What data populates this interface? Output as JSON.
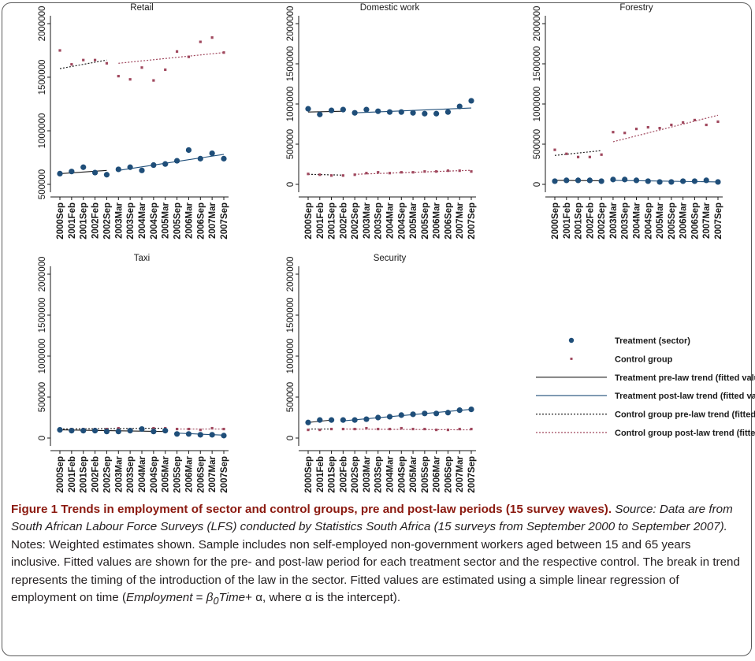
{
  "sectors": [
    "Retail",
    "Domestic work",
    "Forestry",
    "Taxi",
    "Security"
  ],
  "y_ticks": [
    [
      "500000",
      "1000000",
      "1500000",
      "2000000"
    ],
    [
      "0",
      "500000",
      "1000000",
      "1500000",
      "2000000"
    ],
    [
      "0",
      "500000",
      "1000000",
      "1500000",
      "2000000"
    ],
    [
      "0",
      "500000",
      "1000000",
      "1500000",
      "2000000"
    ],
    [
      "0",
      "500000",
      "1000000",
      "1500000",
      "2000000"
    ]
  ],
  "x_ticks": [
    "2000Sep",
    "2001Feb",
    "2001Sep",
    "2002Feb",
    "2002Sep",
    "2003Mar",
    "2003Sep",
    "2004Mar",
    "2004Sep",
    "2005Mar",
    "2005Sep",
    "2006Mar",
    "2006Sep",
    "2007Mar",
    "2007Sep"
  ],
  "legend": [
    "Treatment (sector)",
    "Control group",
    "Treatment pre-law trend (fitted values)",
    "Treatment post-law trend (fitted values)",
    "Control group pre-law trend (fitted values)",
    "Control group post-law trend (fitted values)"
  ],
  "colors": {
    "treatment": "#1f4e79",
    "control": "#a0485e",
    "treatment_pre": "#1a1a1a",
    "treatment_post": "#1f4e79",
    "control_pre": "#222222",
    "control_post": "#a0485e",
    "caption_title": "#8b1a10"
  },
  "caption": {
    "title": "Figure 1 Trends in employment of sector and control groups, pre and post-law periods (15 survey waves).",
    "source": "Source: Data are from South African Labour Force Surveys (LFS) conducted by Statistics South Africa (15 surveys from September 2000 to September 2007).",
    "notes": "Notes: Weighted estimates shown. Sample includes non self-employed non-government workers aged between 15 and 65 years inclusive. Fitted values are shown for the pre- and post-law period for each treatment sector and the respective control. The break in trend represents the timing of the introduction of the law in the sector. Fitted values are estimated using a simple linear regression of employment on time (",
    "formula_lhs": "Employment",
    "formula_eq": " = ",
    "formula_beta": "β",
    "formula_sub": "0",
    "formula_time": "Time",
    "formula_plus": "+ α",
    "notes_end": ", where α is the intercept)."
  },
  "chart_data": [
    {
      "type": "scatter",
      "title": "Retail",
      "ylim": [
        500000,
        2000000
      ],
      "law_index": 5,
      "series": [
        {
          "name": "Treatment (sector)",
          "values": [
            600000,
            620000,
            660000,
            610000,
            590000,
            640000,
            660000,
            630000,
            680000,
            690000,
            720000,
            820000,
            740000,
            790000,
            740000
          ]
        },
        {
          "name": "Control group",
          "values": [
            1750000,
            1620000,
            1660000,
            1660000,
            1630000,
            1510000,
            1480000,
            1590000,
            1470000,
            1570000,
            1740000,
            1690000,
            1830000,
            1870000,
            1730000
          ]
        }
      ],
      "trends": {
        "treatment_pre": [
          600000,
          630000
        ],
        "treatment_post": [
          630000,
          780000
        ],
        "control_pre": [
          1580000,
          1660000
        ],
        "control_post": [
          1630000,
          1730000
        ]
      }
    },
    {
      "type": "scatter",
      "title": "Domestic work",
      "ylim": [
        0,
        2000000
      ],
      "law_index": 4,
      "series": [
        {
          "name": "Treatment (sector)",
          "values": [
            940000,
            870000,
            920000,
            930000,
            890000,
            930000,
            910000,
            900000,
            900000,
            890000,
            880000,
            880000,
            900000,
            970000,
            1040000
          ]
        },
        {
          "name": "Control group",
          "values": [
            130000,
            120000,
            110000,
            110000,
            120000,
            140000,
            150000,
            140000,
            150000,
            150000,
            160000,
            160000,
            170000,
            170000,
            160000
          ]
        }
      ],
      "trends": {
        "treatment_pre": [
          900000,
          910000
        ],
        "treatment_post": [
          890000,
          950000
        ],
        "control_pre": [
          125000,
          115000
        ],
        "control_post": [
          125000,
          175000
        ]
      }
    },
    {
      "type": "scatter",
      "title": "Forestry",
      "ylim": [
        0,
        2000000
      ],
      "law_index": 5,
      "series": [
        {
          "name": "Treatment (sector)",
          "values": [
            40000,
            50000,
            50000,
            50000,
            40000,
            60000,
            60000,
            50000,
            40000,
            30000,
            30000,
            40000,
            40000,
            50000,
            30000
          ]
        },
        {
          "name": "Control group",
          "values": [
            430000,
            380000,
            340000,
            340000,
            370000,
            650000,
            640000,
            690000,
            710000,
            700000,
            740000,
            770000,
            800000,
            740000,
            780000
          ]
        }
      ],
      "trends": {
        "treatment_pre": [
          50000,
          45000
        ],
        "treatment_post": [
          50000,
          30000
        ],
        "control_pre": [
          360000,
          420000
        ],
        "control_post": [
          530000,
          860000
        ]
      }
    },
    {
      "type": "scatter",
      "title": "Taxi",
      "ylim": [
        0,
        2000000
      ],
      "law_index": 10,
      "series": [
        {
          "name": "Treatment (sector)",
          "values": [
            100000,
            90000,
            90000,
            90000,
            80000,
            80000,
            90000,
            110000,
            80000,
            90000,
            50000,
            50000,
            40000,
            40000,
            30000
          ]
        },
        {
          "name": "Control group",
          "values": [
            110000,
            110000,
            110000,
            110000,
            110000,
            120000,
            110000,
            110000,
            120000,
            120000,
            110000,
            110000,
            100000,
            120000,
            110000
          ]
        }
      ],
      "trends": {
        "treatment_pre": [
          100000,
          80000
        ],
        "treatment_post": [
          60000,
          35000
        ],
        "control_pre": [
          110000,
          120000
        ],
        "control_post": [
          110000,
          110000
        ]
      }
    },
    {
      "type": "scatter",
      "title": "Security",
      "ylim": [
        0,
        2000000
      ],
      "law_index": 3,
      "series": [
        {
          "name": "Treatment (sector)",
          "values": [
            190000,
            220000,
            220000,
            220000,
            220000,
            230000,
            250000,
            260000,
            280000,
            290000,
            300000,
            300000,
            310000,
            340000,
            350000
          ]
        },
        {
          "name": "Control group",
          "values": [
            100000,
            100000,
            110000,
            110000,
            110000,
            120000,
            110000,
            110000,
            120000,
            110000,
            110000,
            100000,
            100000,
            110000,
            110000
          ]
        }
      ],
      "trends": {
        "treatment_pre": [
          190000,
          220000
        ],
        "treatment_post": [
          210000,
          350000
        ],
        "control_pre": [
          110000,
          110000
        ],
        "control_post": [
          110000,
          100000
        ]
      }
    }
  ]
}
